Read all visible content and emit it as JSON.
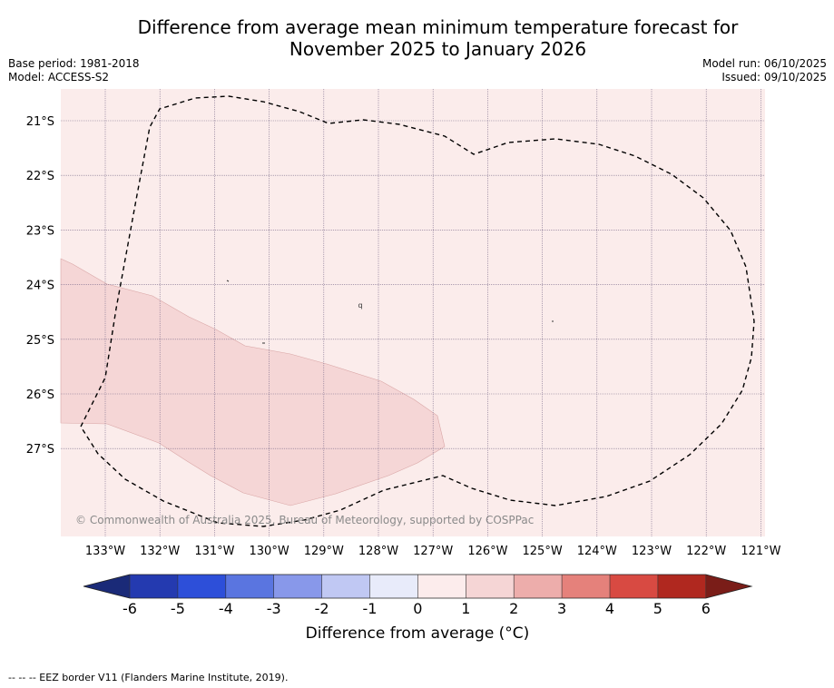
{
  "title": {
    "line1": "Difference from average mean minimum temperature forecast for",
    "line2": "November 2025 to January 2026"
  },
  "meta_left": {
    "base_period": "Base period: 1981-2018",
    "model": "Model: ACCESS-S2"
  },
  "meta_right": {
    "model_run": "Model run: 06/10/2025",
    "issued": "Issued: 09/10/2025"
  },
  "map": {
    "lat_labels": [
      "21°S",
      "22°S",
      "23°S",
      "24°S",
      "25°S",
      "26°S",
      "27°S"
    ],
    "lon_labels": [
      "133°W",
      "132°W",
      "131°W",
      "130°W",
      "129°W",
      "128°W",
      "127°W",
      "126°W",
      "125°W",
      "124°W",
      "123°W",
      "122°W",
      "121°W"
    ],
    "copyright": "© Commonwealth of Australia 2025, Bureau of Meteorology, supported by COSPPac",
    "island_label": "q"
  },
  "colorbar": {
    "ticks": [
      "-6",
      "-5",
      "-4",
      "-3",
      "-2",
      "-1",
      "0",
      "1",
      "2",
      "3",
      "4",
      "5",
      "6"
    ],
    "label": "Difference from average (°C)",
    "colors": [
      "#243ab0",
      "#2d4fd9",
      "#5a75e0",
      "#8898ea",
      "#c0c8f3",
      "#e8ebfa",
      "#fcecec",
      "#f5d5d5",
      "#edadab",
      "#e5817b",
      "#d84a42",
      "#b0281f"
    ],
    "under_color": "#1a2a78",
    "over_color": "#7a1d18",
    "map_bg_color": "#fbeceb",
    "map_warm_color": "#f5d6d6"
  },
  "footnote": "--  --  -- EEZ border V11 (Flanders Marine Institute, 2019)."
}
